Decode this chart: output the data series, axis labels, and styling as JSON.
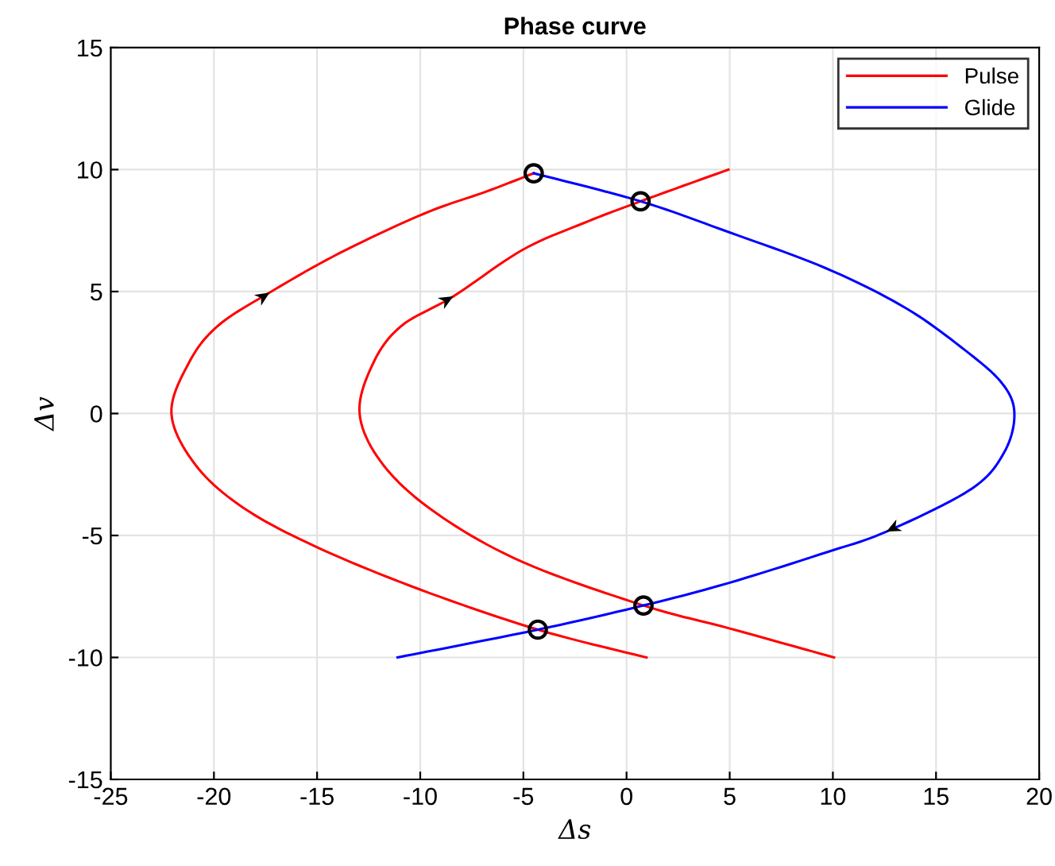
{
  "chart_data": {
    "type": "line",
    "title": "Phase curve",
    "xlabel": "Δs",
    "ylabel": "Δv",
    "xlim": [
      -25,
      20
    ],
    "xticks": [
      -25,
      -20,
      -15,
      -10,
      -5,
      0,
      5,
      10,
      15,
      20
    ],
    "ylim": [
      -15,
      15
    ],
    "yticks": [
      -15,
      -10,
      -5,
      0,
      5,
      10,
      15
    ],
    "grid": true,
    "legend": "top right",
    "line_style": "solid",
    "series": [
      {
        "name": "Pulse",
        "color": "#ff0000",
        "x": [
          0.97,
          -4.3,
          -10.06,
          -15.06,
          -18.6,
          -20.9,
          -22.06,
          -21.2,
          -19.8,
          -17.3,
          -13.9,
          -9.8,
          -6.8,
          -4.5,
          null,
          10.06,
          4.94,
          0.82,
          -5.06,
          -9.2,
          -11.8,
          -12.94,
          -12.26,
          -10.9,
          -8.4,
          -5.06,
          -2.1,
          0.68,
          4.94
        ],
        "values": [
          -10,
          -8.86,
          -7.2,
          -5.46,
          -3.85,
          -2.1,
          0,
          2.1,
          3.6,
          4.96,
          6.58,
          8.2,
          9.1,
          9.85,
          null,
          -10,
          -8.8,
          -7.87,
          -6.08,
          -4.1,
          -2.1,
          0,
          2.1,
          3.6,
          4.8,
          6.7,
          7.8,
          8.7,
          10
        ]
      },
      {
        "name": "Glide",
        "color": "#0000ff",
        "x": [
          -4.5,
          0.68,
          4.94,
          9.65,
          13.5,
          16.4,
          18.2,
          18.8,
          18.3,
          16.7,
          12.6,
          9.65,
          4.94,
          0.82,
          -4.3,
          -11.1
        ],
        "values": [
          9.85,
          8.7,
          7.44,
          5.96,
          4.34,
          2.6,
          1.24,
          0,
          -1.6,
          -3.1,
          -4.84,
          -5.7,
          -6.95,
          -7.87,
          -8.86,
          -10
        ]
      },
      {
        "type": "scatter",
        "marker": "circle",
        "color": "#000000",
        "x": [
          -4.5,
          0.68,
          0.82,
          -4.3
        ],
        "values": [
          9.85,
          8.7,
          -7.87,
          -8.86
        ]
      }
    ]
  }
}
